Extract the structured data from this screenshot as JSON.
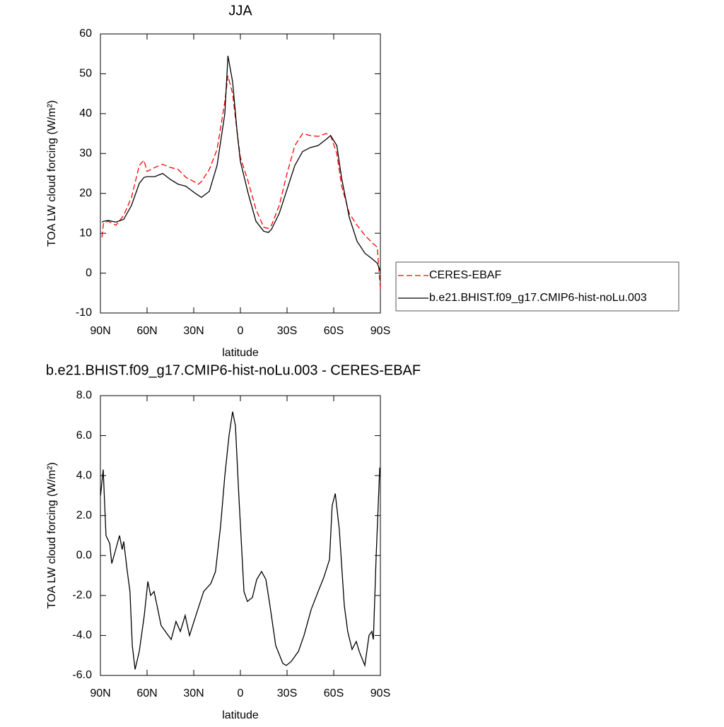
{
  "chart_data": [
    {
      "type": "line",
      "title": "JJA",
      "xlabel": "latitude",
      "ylabel": "TOA LW cloud forcing (W/m²)",
      "x": [
        89,
        88,
        85,
        80,
        75,
        70,
        65,
        62,
        60,
        55,
        50,
        45,
        40,
        35,
        30,
        27,
        25,
        20,
        15,
        10,
        8,
        5,
        2,
        0,
        -5,
        -10,
        -15,
        -18,
        -20,
        -25,
        -30,
        -35,
        -40,
        -45,
        -50,
        -55,
        -58,
        -62,
        -65,
        -70,
        -75,
        -80,
        -85,
        -88,
        -90
      ],
      "series": [
        {
          "name": "CERES-EBAF",
          "color": "#ff0000",
          "linestyle": "dashed",
          "values": [
            9,
            12.5,
            13,
            12,
            14.5,
            19,
            27,
            28.3,
            25.5,
            26.5,
            27.3,
            26.5,
            26,
            24,
            23,
            22.3,
            23,
            26,
            31,
            43,
            49.5,
            45,
            35,
            29,
            23,
            16,
            11.5,
            11.2,
            12,
            17,
            25,
            32,
            35,
            34.5,
            34.3,
            35,
            34.5,
            30,
            22,
            15,
            12,
            9.5,
            7.5,
            6.5,
            -4
          ]
        },
        {
          "name": "b.e21.BHIST.f09_g17.CMIP6-hist-noLu.003",
          "color": "#000000",
          "linestyle": "solid",
          "values": [
            12.8,
            13,
            13.2,
            12.8,
            13.5,
            17,
            22.5,
            24,
            24.2,
            24.2,
            25,
            23.5,
            22.3,
            21.8,
            20.3,
            19.5,
            19,
            20.5,
            27,
            40,
            54.5,
            48,
            35,
            28,
            20,
            13,
            10.5,
            10.2,
            11,
            15,
            21,
            27,
            30.5,
            31.5,
            32,
            33.5,
            34.5,
            32,
            24,
            14,
            8,
            5,
            3.5,
            2.5,
            0.5
          ]
        }
      ],
      "xlim": [
        90,
        -90
      ],
      "xticks": [
        {
          "value": 90,
          "label": "90N"
        },
        {
          "value": 60,
          "label": "60N"
        },
        {
          "value": 30,
          "label": "30N"
        },
        0,
        {
          "value": -30,
          "label": "30S"
        },
        {
          "value": -60,
          "label": "60S"
        },
        {
          "value": -90,
          "label": "90S"
        }
      ],
      "ylim": [
        -10,
        60
      ],
      "yticks": [
        -10,
        0,
        10,
        20,
        30,
        40,
        50,
        60
      ],
      "legend": "right"
    },
    {
      "type": "line",
      "title": "b.e21.BHIST.f09_g17.CMIP6-hist-noLu.003 - CERES-EBAF",
      "xlabel": "latitude",
      "ylabel": "TOA LW cloud forcing (W/m²)",
      "x": [
        89.9,
        88.2,
        86.4,
        84,
        82.7,
        80.5,
        77.7,
        76,
        75,
        72.7,
        71,
        69.5,
        67.7,
        65,
        61.8,
        59.5,
        57.7,
        55.5,
        53.6,
        51,
        47.3,
        44.5,
        41.4,
        38.6,
        35.5,
        32.7,
        28.2,
        23.6,
        19,
        16,
        12.7,
        10,
        7.3,
        5,
        3.2,
        1,
        -2.3,
        -4.5,
        -7.7,
        -10.5,
        -13.6,
        -16.4,
        -19,
        -22.7,
        -27.3,
        -29.5,
        -32.7,
        -37.3,
        -40.9,
        -45.5,
        -50,
        -53.6,
        -57.3,
        -59,
        -61,
        -63.6,
        -66.8,
        -69,
        -71.8,
        -74.5,
        -76.4,
        -80,
        -82.7,
        -84.5,
        -85.5,
        -87.3,
        -89.6
      ],
      "values": [
        3.0,
        4.3,
        1.0,
        0.6,
        -0.4,
        0.2,
        1.0,
        0.3,
        0.7,
        -0.8,
        -1.8,
        -4.5,
        -5.7,
        -4.8,
        -3.0,
        -1.3,
        -2.0,
        -1.8,
        -2.5,
        -3.5,
        -3.9,
        -4.2,
        -3.3,
        -3.8,
        -3.0,
        -4.0,
        -2.9,
        -1.8,
        -1.4,
        -0.8,
        1.5,
        4.0,
        6.0,
        7.2,
        6.5,
        3.0,
        -1.8,
        -2.3,
        -2.1,
        -1.2,
        -0.8,
        -1.2,
        -2.5,
        -4.5,
        -5.4,
        -5.5,
        -5.3,
        -4.8,
        -4.0,
        -2.7,
        -1.8,
        -1.1,
        -0.2,
        2.5,
        3.1,
        1.3,
        -2.5,
        -3.8,
        -4.7,
        -4.3,
        -4.8,
        -5.5,
        -4.0,
        -3.8,
        -4.2,
        0.0,
        4.4
      ],
      "color": "#000000",
      "xlim": [
        90,
        -90
      ],
      "xticks": [
        {
          "value": 90,
          "label": "90N"
        },
        {
          "value": 60,
          "label": "60N"
        },
        {
          "value": 30,
          "label": "30N"
        },
        0,
        {
          "value": -30,
          "label": "30S"
        },
        {
          "value": -60,
          "label": "60S"
        },
        {
          "value": -90,
          "label": "90S"
        }
      ],
      "ylim": [
        -6,
        8
      ],
      "yticks": [
        {
          "value": -6,
          "label": "-6.0"
        },
        {
          "value": -4,
          "label": "-4.0"
        },
        {
          "value": -2,
          "label": "-2.0"
        },
        {
          "value": 0,
          "label": "0.0"
        },
        {
          "value": 2,
          "label": "2.0"
        },
        {
          "value": 4,
          "label": "4.0"
        },
        {
          "value": 6,
          "label": "6.0"
        },
        {
          "value": 8,
          "label": "8.0"
        }
      ]
    }
  ]
}
